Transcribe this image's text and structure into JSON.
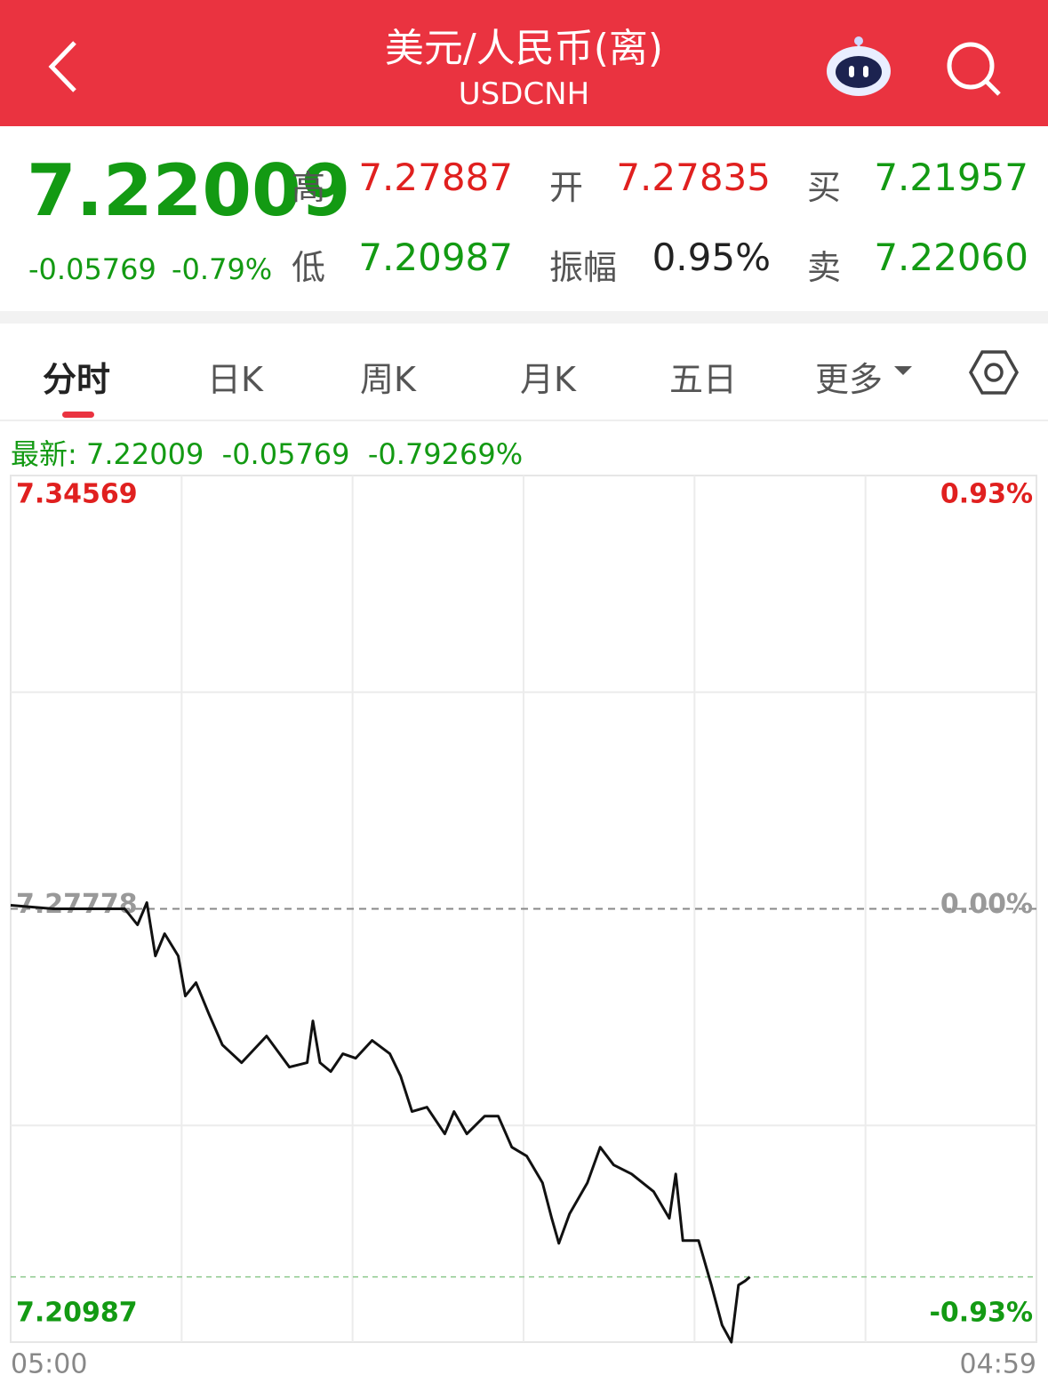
{
  "header": {
    "title": "美元/人民币(离)",
    "subtitle": "USDCNH"
  },
  "quote": {
    "price": "7.22009",
    "change": "-0.05769",
    "change_pct": "-0.79%",
    "stats": [
      {
        "label": "高",
        "value": "7.27887"
      },
      {
        "label": "开",
        "value": "7.27835"
      },
      {
        "label": "买",
        "value": "7.21957"
      },
      {
        "label": "低",
        "value": "7.20987"
      },
      {
        "label": "振幅",
        "value": "0.95%"
      },
      {
        "label": "卖",
        "value": "7.22060"
      }
    ]
  },
  "tabs": [
    "分时",
    "日K",
    "周K",
    "月K",
    "五日",
    "更多"
  ],
  "latest": {
    "label": "最新:",
    "price": "7.22009",
    "change": "-0.05769",
    "change_pct": "-0.79269%"
  },
  "chart_data": {
    "type": "line",
    "x": [
      0,
      60,
      110,
      160,
      178,
      191,
      203,
      216,
      235,
      245,
      260,
      278,
      297,
      324,
      359,
      391,
      416,
      424,
      434,
      449,
      466,
      484,
      507,
      532,
      547,
      563,
      584,
      609,
      622,
      640,
      665,
      684,
      703,
      724,
      746,
      759,
      769,
      784,
      809,
      827,
      846,
      871,
      902,
      924,
      933,
      943,
      965,
      983,
      998,
      1011,
      1021,
      1031,
      1037
    ],
    "values": [
      7.27834,
      7.27778,
      7.27778,
      7.27778,
      7.27527,
      7.27876,
      7.27039,
      7.27388,
      7.27039,
      7.26412,
      7.26621,
      7.26133,
      7.25645,
      7.25366,
      7.25785,
      7.25297,
      7.25366,
      7.26022,
      7.25366,
      7.25227,
      7.25506,
      7.25436,
      7.25715,
      7.25506,
      7.25157,
      7.246,
      7.24669,
      7.24251,
      7.246,
      7.24251,
      7.2453,
      7.2453,
      7.24042,
      7.23903,
      7.23484,
      7.22927,
      7.22536,
      7.22996,
      7.23484,
      7.24042,
      7.23763,
      7.23623,
      7.23345,
      7.22927,
      7.23623,
      7.22578,
      7.22578,
      7.21881,
      7.21254,
      7.20987,
      7.21881,
      7.21951,
      7.22009
    ],
    "color": "#111111",
    "xlim": [
      0,
      1439
    ],
    "xticks": [
      {
        "value": 0,
        "label": "05:00"
      },
      {
        "value": 1439,
        "label": "04:59"
      }
    ],
    "ylim": [
      7.20987,
      7.34569
    ],
    "yticks": [
      7.20987,
      7.27778,
      7.34569
    ],
    "y2lim": [
      -0.93,
      0.93
    ],
    "y2ticks": [
      {
        "value": -0.93,
        "label": "-0.93%"
      },
      {
        "value": 0,
        "label": "0.00%"
      },
      {
        "value": 0.93,
        "label": "0.93%"
      }
    ]
  }
}
